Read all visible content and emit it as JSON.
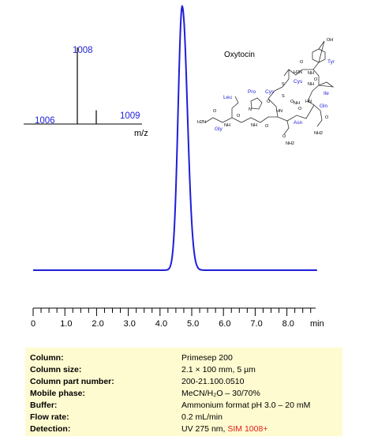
{
  "chart_data": [
    {
      "type": "line",
      "title": "",
      "xlabel": "min",
      "ylabel": "",
      "xlim": [
        0,
        9
      ],
      "x_ticks": [
        0,
        1.0,
        2.0,
        3.0,
        4.0,
        5.0,
        6.0,
        7.0,
        8.0
      ],
      "x_tick_labels": [
        "0",
        "1.0",
        "2.0",
        "3.0",
        "4.0",
        "5.0",
        "6.0",
        "7.0",
        "8.0"
      ],
      "grid": false,
      "series": [
        {
          "color": "#1e1ed8",
          "peak_time": 4.7,
          "peak_width_sigma": 0.13,
          "peak_height_fraction": 1.0
        }
      ]
    },
    {
      "type": "bar",
      "title": "",
      "xlabel": "m/z",
      "categories": [
        "1008",
        "1009"
      ],
      "values": [
        100,
        18
      ],
      "labels": [
        "1006",
        "1008",
        "1009"
      ],
      "label_positions": [
        1006,
        1008,
        1009
      ]
    }
  ],
  "molecule": {
    "name": "Oxytocin",
    "residues": [
      "Tyr",
      "Cys",
      "Ile",
      "Leu",
      "Pro",
      "Cys",
      "Gln",
      "Asn",
      "Gly"
    ],
    "atoms": [
      "OH",
      "H2N",
      "O",
      "NH",
      "S",
      "S",
      "O",
      "NH",
      "HN",
      "O",
      "HN",
      "O",
      "O",
      "NH",
      "O",
      "N",
      "O",
      "NH",
      "O",
      "NH",
      "H2N",
      "O",
      "NH2",
      "O",
      "NH2"
    ]
  },
  "colors": {
    "trace": "#1e1ed8",
    "box_bg": "#fffbd0",
    "highlight": "#e0201c",
    "label_blue": "#1e1ed8"
  },
  "info": {
    "rows": [
      {
        "label": "Column:",
        "value": "Primesep  200",
        "extra": ""
      },
      {
        "label": "Column size:",
        "value": "2.1 × 100 mm, 5 µm",
        "extra": ""
      },
      {
        "label": "Column part number:",
        "value": "200-21.100.0510",
        "extra": ""
      },
      {
        "label": "Mobile phase:",
        "value": "MeCN/H₂O – 30/70%",
        "extra": ""
      },
      {
        "label": "Buffer:",
        "value": "Ammonium format pH 3.0 – 20 mM",
        "extra": ""
      },
      {
        "label": "Flow rate:",
        "value": "0.2 mL/min",
        "extra": ""
      },
      {
        "label": "Detection:",
        "value": "UV 275 nm, ",
        "extra": "SIM 1008+"
      }
    ]
  }
}
